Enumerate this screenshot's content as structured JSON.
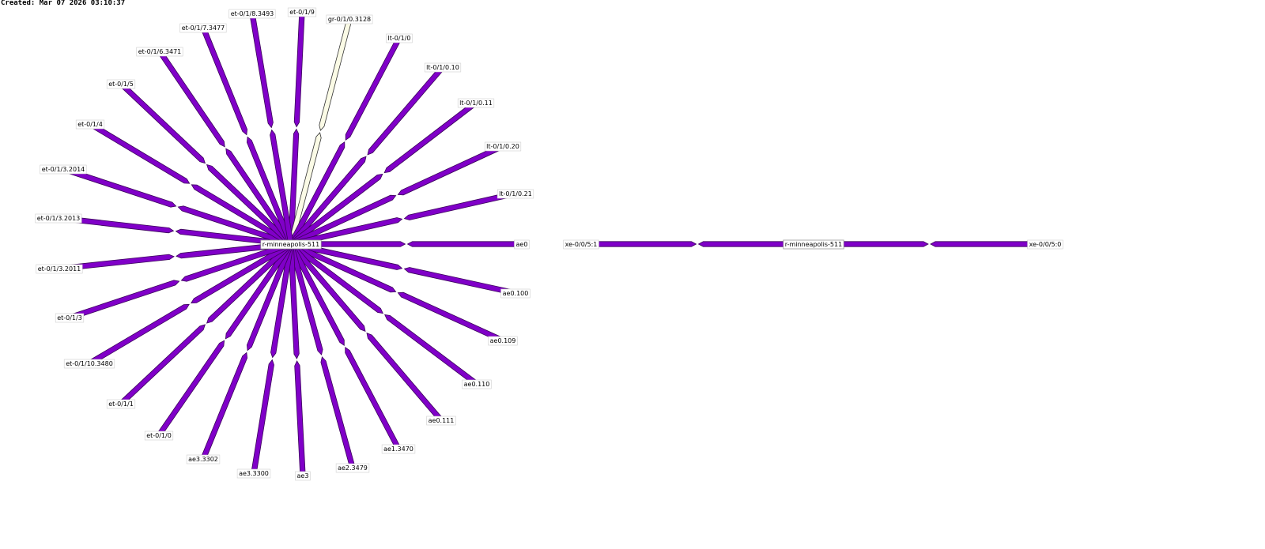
{
  "header": {
    "created": "Created: Mar 07 2026 03:10:37"
  },
  "colors": {
    "link_fill": "#8000c8",
    "link_stroke": "#3a005a",
    "idle_fill": "#fbfbe6",
    "idle_stroke": "#333333"
  },
  "left_graph": {
    "hub_label": "r-minneapolis-511",
    "interfaces": [
      {
        "label": "et-0/1/9",
        "status": "active"
      },
      {
        "label": "gr-0/1/0.3128",
        "status": "idle"
      },
      {
        "label": "lt-0/1/0",
        "status": "active"
      },
      {
        "label": "lt-0/1/0.10",
        "status": "active"
      },
      {
        "label": "lt-0/1/0.11",
        "status": "active"
      },
      {
        "label": "lt-0/1/0.20",
        "status": "active"
      },
      {
        "label": "lt-0/1/0.21",
        "status": "active"
      },
      {
        "label": "ae0",
        "status": "active"
      },
      {
        "label": "ae0.100",
        "status": "active"
      },
      {
        "label": "ae0.109",
        "status": "active"
      },
      {
        "label": "ae0.110",
        "status": "active"
      },
      {
        "label": "ae0.111",
        "status": "active"
      },
      {
        "label": "ae1.3470",
        "status": "active"
      },
      {
        "label": "ae2.3479",
        "status": "active"
      },
      {
        "label": "ae3",
        "status": "active"
      },
      {
        "label": "ae3.3300",
        "status": "active"
      },
      {
        "label": "ae3.3302",
        "status": "active"
      },
      {
        "label": "et-0/1/0",
        "status": "active"
      },
      {
        "label": "et-0/1/1",
        "status": "active"
      },
      {
        "label": "et-0/1/10.3480",
        "status": "active"
      },
      {
        "label": "et-0/1/3",
        "status": "active"
      },
      {
        "label": "et-0/1/3.2011",
        "status": "active"
      },
      {
        "label": "et-0/1/3.2013",
        "status": "active"
      },
      {
        "label": "et-0/1/3.2014",
        "status": "active"
      },
      {
        "label": "et-0/1/4",
        "status": "active"
      },
      {
        "label": "et-0/1/5",
        "status": "active"
      },
      {
        "label": "et-0/1/6.3471",
        "status": "active"
      },
      {
        "label": "et-0/1/7.3477",
        "status": "active"
      },
      {
        "label": "et-0/1/8.3493",
        "status": "active"
      }
    ]
  },
  "right_graph": {
    "hub_label": "r-minneapolis-511",
    "left_label": "xe-0/0/5:1",
    "right_label": "xe-0/0/5:0"
  }
}
